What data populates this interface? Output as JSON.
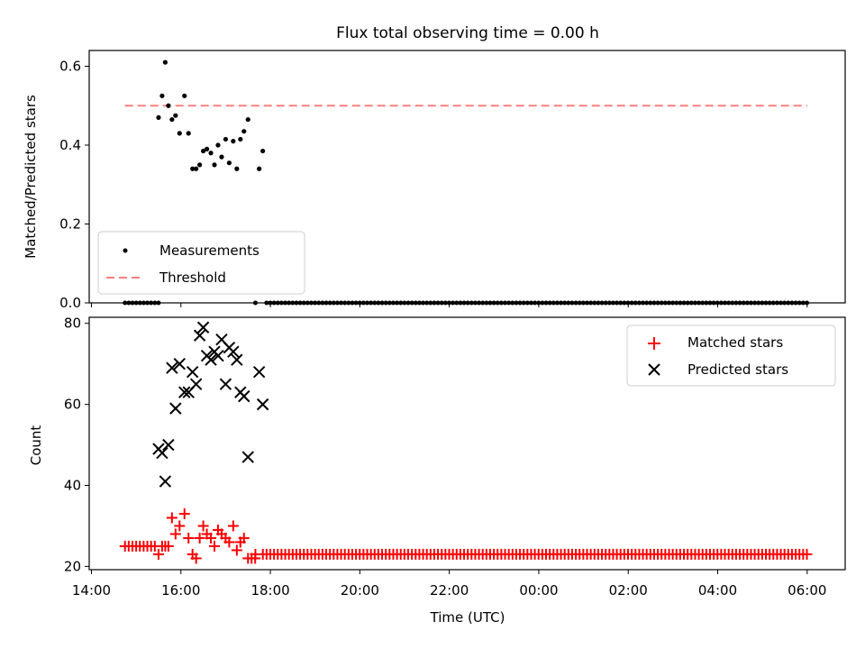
{
  "chart_data": {
    "title": "Flux total observing time = 0.00 h",
    "xlabel": "Time (UTC)",
    "x_unit": "hours since 14:00 UTC",
    "xlim": [
      13.95,
      30.85
    ],
    "xticks": [
      {
        "v": 14.0,
        "label": "14:00"
      },
      {
        "v": 16.0,
        "label": "16:00"
      },
      {
        "v": 18.0,
        "label": "18:00"
      },
      {
        "v": 20.0,
        "label": "20:00"
      },
      {
        "v": 22.0,
        "label": "22:00"
      },
      {
        "v": 24.0,
        "label": "00:00"
      },
      {
        "v": 26.0,
        "label": "02:00"
      },
      {
        "v": 28.0,
        "label": "04:00"
      },
      {
        "v": 30.0,
        "label": "06:00"
      }
    ],
    "panels": [
      {
        "type": "scatter",
        "ylabel": "Matched/Predicted stars",
        "ylim": [
          0,
          0.64
        ],
        "yticks": [
          0.0,
          0.2,
          0.4,
          0.6
        ],
        "ytick_labels": [
          "0.0",
          "0.2",
          "0.4",
          "0.6"
        ],
        "legend": {
          "position": "lower-left",
          "entries": [
            {
              "label": "Measurements",
              "marker": "dot",
              "color": "#000000"
            },
            {
              "label": "Threshold",
              "marker": "dash",
              "color": "#ff7f7f"
            }
          ]
        },
        "threshold": {
          "value": 0.5,
          "x_start": 14.75,
          "x_end": 30.0,
          "color": "#ff7f7f"
        },
        "measurements": {
          "x": [
            15.5,
            15.58,
            15.65,
            15.72,
            15.8,
            15.88,
            15.97,
            16.08,
            16.17,
            16.26,
            16.34,
            16.42,
            16.5,
            16.58,
            16.67,
            16.75,
            16.83,
            16.91,
            17.0,
            17.08,
            17.17,
            17.25,
            17.33,
            17.41,
            17.5,
            17.75,
            17.83
          ],
          "y": [
            0.47,
            0.525,
            0.61,
            0.5,
            0.465,
            0.475,
            0.43,
            0.525,
            0.43,
            0.34,
            0.34,
            0.35,
            0.385,
            0.39,
            0.38,
            0.35,
            0.4,
            0.37,
            0.415,
            0.355,
            0.41,
            0.34,
            0.415,
            0.435,
            0.465,
            0.34,
            0.385
          ]
        },
        "zeros": {
          "x_start": 14.75,
          "x_end": 30.05,
          "step": 0.0833,
          "gaps": [
            [
              15.52,
              17.6
            ],
            [
              17.7,
              17.88
            ]
          ],
          "value": 0.0
        }
      },
      {
        "type": "scatter",
        "ylabel": "Count",
        "ylim": [
          19.2,
          81.5
        ],
        "yticks": [
          20,
          40,
          60,
          80
        ],
        "ytick_labels": [
          "20",
          "40",
          "60",
          "80"
        ],
        "legend": {
          "position": "top-right",
          "entries": [
            {
              "label": "Matched stars",
              "marker": "plus",
              "color": "#ff0000"
            },
            {
              "label": "Predicted stars",
              "marker": "x",
              "color": "#000000"
            }
          ]
        },
        "predicted": {
          "x": [
            15.5,
            15.58,
            15.65,
            15.72,
            15.8,
            15.88,
            15.97,
            16.08,
            16.17,
            16.26,
            16.34,
            16.42,
            16.5,
            16.58,
            16.67,
            16.75,
            16.83,
            16.91,
            17.0,
            17.08,
            17.17,
            17.25,
            17.33,
            17.41,
            17.5,
            17.75,
            17.83
          ],
          "y": [
            49,
            48,
            41,
            50,
            69,
            59,
            70,
            63,
            63,
            68,
            65,
            77,
            79,
            72,
            71,
            73,
            72,
            76,
            65,
            74,
            73,
            71,
            63,
            62,
            47,
            68,
            60
          ]
        },
        "matched": {
          "x": [
            15.5,
            15.58,
            15.65,
            15.72,
            15.8,
            15.88,
            15.97,
            16.08,
            16.17,
            16.26,
            16.34,
            16.42,
            16.5,
            16.58,
            16.67,
            16.75,
            16.83,
            16.91,
            17.0,
            17.08,
            17.17,
            17.25,
            17.33,
            17.41,
            17.5,
            17.58,
            17.66
          ],
          "y": [
            23,
            25,
            25,
            25,
            32,
            28,
            30,
            33,
            27,
            23,
            22,
            27,
            30,
            28,
            27,
            25,
            29,
            28,
            27,
            26,
            30,
            24,
            26,
            27,
            22,
            22,
            22
          ]
        },
        "matched_baseline": {
          "x_start": 14.75,
          "x_end": 30.05,
          "step": 0.0833,
          "gaps": [
            [
              15.45,
              17.6
            ],
            [
              17.7,
              17.8
            ]
          ],
          "before_value": 25,
          "after_value": 23
        }
      }
    ]
  }
}
